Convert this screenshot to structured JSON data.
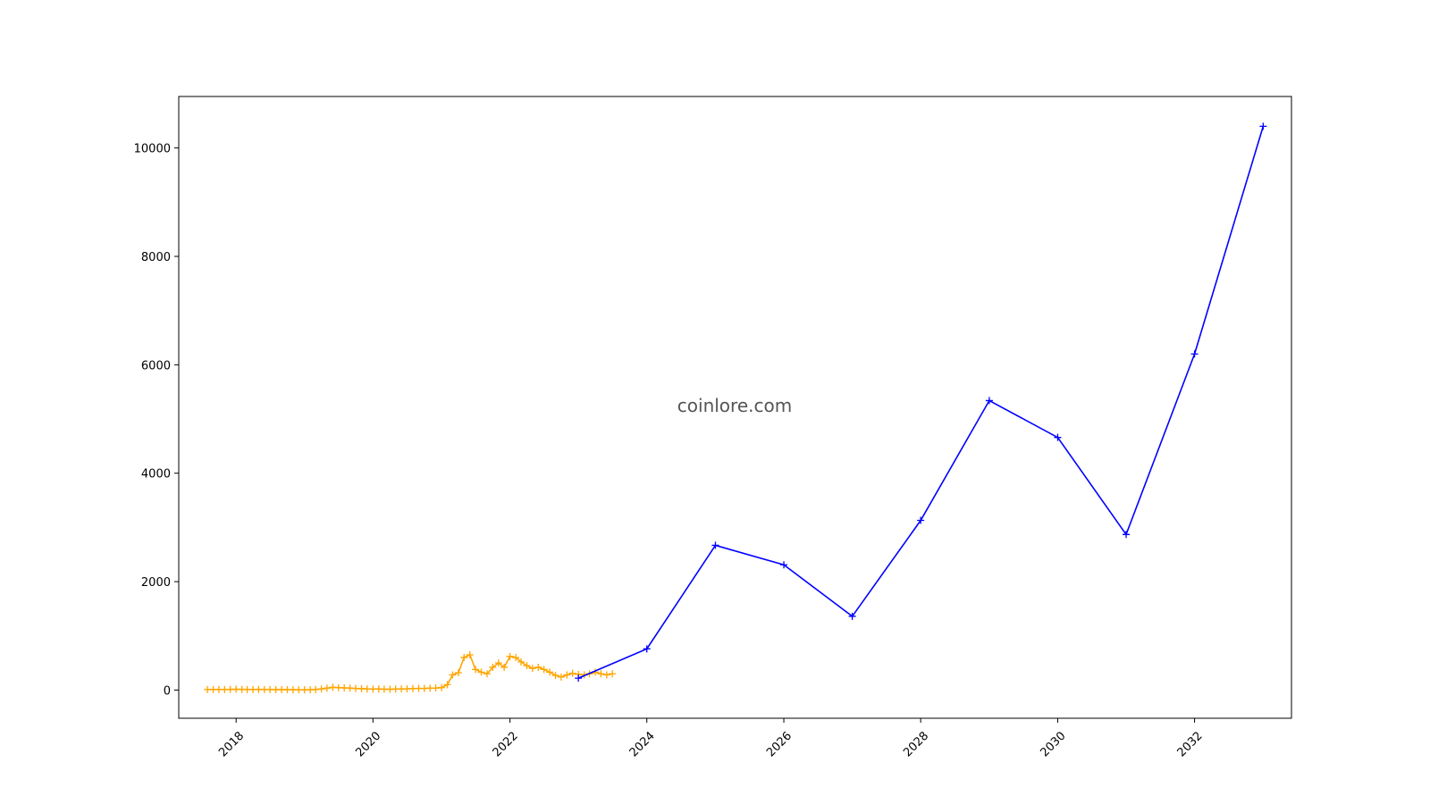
{
  "watermark": "coinlore.com",
  "colors": {
    "historical": "#ffa500",
    "forecast": "#0000ff",
    "axes": "#000000",
    "background": "#ffffff"
  },
  "chart_data": {
    "type": "line",
    "title": "",
    "xlabel": "",
    "ylabel": "",
    "grid": false,
    "legend": "none",
    "xlim": [
      "2017-03-01",
      "2033-06-01"
    ],
    "ylim": [
      -520,
      10950
    ],
    "x_ticks": [
      {
        "date": "2018-01-01",
        "label": "2018"
      },
      {
        "date": "2020-01-01",
        "label": "2020"
      },
      {
        "date": "2022-01-01",
        "label": "2022"
      },
      {
        "date": "2024-01-01",
        "label": "2024"
      },
      {
        "date": "2026-01-01",
        "label": "2026"
      },
      {
        "date": "2028-01-01",
        "label": "2028"
      },
      {
        "date": "2030-01-01",
        "label": "2030"
      },
      {
        "date": "2032-01-01",
        "label": "2032"
      }
    ],
    "y_ticks": [
      {
        "value": 0,
        "label": "0"
      },
      {
        "value": 2000,
        "label": "2000"
      },
      {
        "value": 4000,
        "label": "4000"
      },
      {
        "value": 6000,
        "label": "6000"
      },
      {
        "value": 8000,
        "label": "8000"
      },
      {
        "value": 10000,
        "label": "10000"
      }
    ],
    "series": [
      {
        "color": "#ffa500",
        "marker": "+",
        "points": [
          [
            "2017-08-01",
            10
          ],
          [
            "2017-09-01",
            10
          ],
          [
            "2017-10-01",
            10
          ],
          [
            "2017-11-01",
            10
          ],
          [
            "2017-12-01",
            12
          ],
          [
            "2018-01-01",
            15
          ],
          [
            "2018-02-01",
            12
          ],
          [
            "2018-03-01",
            10
          ],
          [
            "2018-04-01",
            10
          ],
          [
            "2018-05-01",
            12
          ],
          [
            "2018-06-01",
            10
          ],
          [
            "2018-07-01",
            10
          ],
          [
            "2018-08-01",
            8
          ],
          [
            "2018-09-01",
            8
          ],
          [
            "2018-10-01",
            8
          ],
          [
            "2018-11-01",
            6
          ],
          [
            "2018-12-01",
            5
          ],
          [
            "2019-01-01",
            5
          ],
          [
            "2019-02-01",
            6
          ],
          [
            "2019-03-01",
            10
          ],
          [
            "2019-04-01",
            20
          ],
          [
            "2019-05-01",
            35
          ],
          [
            "2019-06-01",
            50
          ],
          [
            "2019-07-01",
            45
          ],
          [
            "2019-08-01",
            40
          ],
          [
            "2019-09-01",
            35
          ],
          [
            "2019-10-01",
            30
          ],
          [
            "2019-11-01",
            25
          ],
          [
            "2019-12-01",
            20
          ],
          [
            "2020-01-01",
            18
          ],
          [
            "2020-02-01",
            20
          ],
          [
            "2020-03-01",
            15
          ],
          [
            "2020-04-01",
            15
          ],
          [
            "2020-05-01",
            18
          ],
          [
            "2020-06-01",
            20
          ],
          [
            "2020-07-01",
            22
          ],
          [
            "2020-08-01",
            28
          ],
          [
            "2020-09-01",
            30
          ],
          [
            "2020-10-01",
            30
          ],
          [
            "2020-11-01",
            35
          ],
          [
            "2020-12-01",
            38
          ],
          [
            "2021-01-01",
            45
          ],
          [
            "2021-02-01",
            100
          ],
          [
            "2021-03-01",
            280
          ],
          [
            "2021-04-01",
            320
          ],
          [
            "2021-05-01",
            600
          ],
          [
            "2021-06-01",
            650
          ],
          [
            "2021-07-01",
            380
          ],
          [
            "2021-08-01",
            330
          ],
          [
            "2021-09-01",
            300
          ],
          [
            "2021-10-01",
            420
          ],
          [
            "2021-11-01",
            500
          ],
          [
            "2021-12-01",
            420
          ],
          [
            "2022-01-01",
            620
          ],
          [
            "2022-02-01",
            600
          ],
          [
            "2022-03-01",
            520
          ],
          [
            "2022-04-01",
            450
          ],
          [
            "2022-05-01",
            400
          ],
          [
            "2022-06-01",
            420
          ],
          [
            "2022-07-01",
            380
          ],
          [
            "2022-08-01",
            330
          ],
          [
            "2022-09-01",
            270
          ],
          [
            "2022-10-01",
            240
          ],
          [
            "2022-11-01",
            280
          ],
          [
            "2022-12-01",
            310
          ],
          [
            "2023-01-01",
            290
          ],
          [
            "2023-02-01",
            280
          ],
          [
            "2023-03-01",
            300
          ],
          [
            "2023-04-01",
            330
          ],
          [
            "2023-05-01",
            300
          ],
          [
            "2023-06-01",
            280
          ],
          [
            "2023-07-01",
            300
          ]
        ]
      },
      {
        "color": "#0000ff",
        "marker": "+",
        "points": [
          [
            "2023-01-01",
            220
          ],
          [
            "2024-01-01",
            760
          ],
          [
            "2025-01-01",
            2670
          ],
          [
            "2026-01-01",
            2310
          ],
          [
            "2027-01-01",
            1360
          ],
          [
            "2028-01-01",
            3130
          ],
          [
            "2029-01-01",
            5340
          ],
          [
            "2030-01-01",
            4660
          ],
          [
            "2031-01-01",
            2870
          ],
          [
            "2032-01-01",
            6200
          ],
          [
            "2033-01-01",
            10400
          ]
        ]
      }
    ]
  }
}
